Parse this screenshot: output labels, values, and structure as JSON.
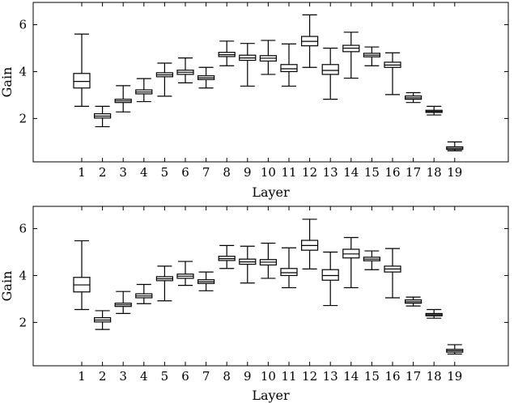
{
  "chart_data": [
    {
      "type": "box",
      "title": "",
      "xlabel": "Layer",
      "ylabel": "Gain",
      "categories": [
        "1",
        "2",
        "3",
        "4",
        "5",
        "6",
        "7",
        "8",
        "9",
        "10",
        "11",
        "12",
        "13",
        "14",
        "15",
        "16",
        "17",
        "18",
        "19"
      ],
      "ylim": [
        0.15,
        6.95
      ],
      "yticks": [
        2,
        4,
        6
      ],
      "grid": false,
      "boxes": [
        {
          "min": 2.52,
          "q1": 3.3,
          "median": 3.58,
          "q3": 3.92,
          "max": 5.6
        },
        {
          "min": 1.65,
          "q1": 2.02,
          "median": 2.1,
          "q3": 2.2,
          "max": 2.52
        },
        {
          "min": 2.28,
          "q1": 2.68,
          "median": 2.75,
          "q3": 2.82,
          "max": 3.4
        },
        {
          "min": 2.72,
          "q1": 3.05,
          "median": 3.13,
          "q3": 3.22,
          "max": 3.7
        },
        {
          "min": 2.95,
          "q1": 3.78,
          "median": 3.86,
          "q3": 3.95,
          "max": 4.36
        },
        {
          "min": 3.52,
          "q1": 3.88,
          "median": 3.97,
          "q3": 4.06,
          "max": 4.58
        },
        {
          "min": 3.3,
          "q1": 3.66,
          "median": 3.73,
          "q3": 3.82,
          "max": 4.18
        },
        {
          "min": 4.25,
          "q1": 4.64,
          "median": 4.72,
          "q3": 4.82,
          "max": 5.3
        },
        {
          "min": 3.38,
          "q1": 4.48,
          "median": 4.58,
          "q3": 4.7,
          "max": 5.2
        },
        {
          "min": 3.88,
          "q1": 4.45,
          "median": 4.57,
          "q3": 4.68,
          "max": 5.33
        },
        {
          "min": 3.38,
          "q1": 4.0,
          "median": 4.12,
          "q3": 4.3,
          "max": 5.18
        },
        {
          "min": 4.18,
          "q1": 5.1,
          "median": 5.29,
          "q3": 5.5,
          "max": 6.42
        },
        {
          "min": 2.82,
          "q1": 3.88,
          "median": 4.05,
          "q3": 4.3,
          "max": 5.0
        },
        {
          "min": 3.72,
          "q1": 4.85,
          "median": 5.0,
          "q3": 5.12,
          "max": 5.68
        },
        {
          "min": 4.25,
          "q1": 4.63,
          "median": 4.7,
          "q3": 4.78,
          "max": 5.05
        },
        {
          "min": 3.02,
          "q1": 4.18,
          "median": 4.28,
          "q3": 4.4,
          "max": 4.8
        },
        {
          "min": 2.68,
          "q1": 2.82,
          "median": 2.88,
          "q3": 2.96,
          "max": 3.1
        },
        {
          "min": 2.15,
          "q1": 2.26,
          "median": 2.3,
          "q3": 2.35,
          "max": 2.52
        },
        {
          "min": 0.62,
          "q1": 0.68,
          "median": 0.73,
          "q3": 0.79,
          "max": 1.0
        }
      ]
    },
    {
      "type": "box",
      "title": "",
      "xlabel": "Layer",
      "ylabel": "Gain",
      "categories": [
        "1",
        "2",
        "3",
        "4",
        "5",
        "6",
        "7",
        "8",
        "9",
        "10",
        "11",
        "12",
        "13",
        "14",
        "15",
        "16",
        "17",
        "18",
        "19"
      ],
      "ylim": [
        0.15,
        6.95
      ],
      "yticks": [
        2,
        4,
        6
      ],
      "grid": false,
      "boxes": [
        {
          "min": 2.55,
          "q1": 3.3,
          "median": 3.6,
          "q3": 3.92,
          "max": 5.48
        },
        {
          "min": 1.7,
          "q1": 2.02,
          "median": 2.1,
          "q3": 2.2,
          "max": 2.5
        },
        {
          "min": 2.38,
          "q1": 2.68,
          "median": 2.75,
          "q3": 2.82,
          "max": 3.32
        },
        {
          "min": 2.8,
          "q1": 3.05,
          "median": 3.13,
          "q3": 3.22,
          "max": 3.62
        },
        {
          "min": 2.92,
          "q1": 3.78,
          "median": 3.86,
          "q3": 3.95,
          "max": 4.4
        },
        {
          "min": 3.58,
          "q1": 3.88,
          "median": 3.97,
          "q3": 4.06,
          "max": 4.6
        },
        {
          "min": 3.35,
          "q1": 3.66,
          "median": 3.73,
          "q3": 3.82,
          "max": 4.15
        },
        {
          "min": 4.3,
          "q1": 4.64,
          "median": 4.72,
          "q3": 4.82,
          "max": 5.28
        },
        {
          "min": 3.68,
          "q1": 4.48,
          "median": 4.58,
          "q3": 4.7,
          "max": 5.25
        },
        {
          "min": 3.88,
          "q1": 4.45,
          "median": 4.57,
          "q3": 4.68,
          "max": 5.38
        },
        {
          "min": 3.48,
          "q1": 4.0,
          "median": 4.12,
          "q3": 4.3,
          "max": 5.18
        },
        {
          "min": 4.28,
          "q1": 5.08,
          "median": 5.28,
          "q3": 5.5,
          "max": 6.4
        },
        {
          "min": 2.72,
          "q1": 3.8,
          "median": 4.0,
          "q3": 4.25,
          "max": 5.0
        },
        {
          "min": 3.48,
          "q1": 4.75,
          "median": 4.92,
          "q3": 5.12,
          "max": 5.62
        },
        {
          "min": 4.25,
          "q1": 4.63,
          "median": 4.7,
          "q3": 4.78,
          "max": 5.05
        },
        {
          "min": 3.05,
          "q1": 4.15,
          "median": 4.28,
          "q3": 4.4,
          "max": 5.15
        },
        {
          "min": 2.7,
          "q1": 2.82,
          "median": 2.88,
          "q3": 2.96,
          "max": 3.08
        },
        {
          "min": 2.18,
          "q1": 2.28,
          "median": 2.33,
          "q3": 2.38,
          "max": 2.55
        },
        {
          "min": 0.65,
          "q1": 0.73,
          "median": 0.79,
          "q3": 0.85,
          "max": 1.05
        }
      ]
    }
  ]
}
